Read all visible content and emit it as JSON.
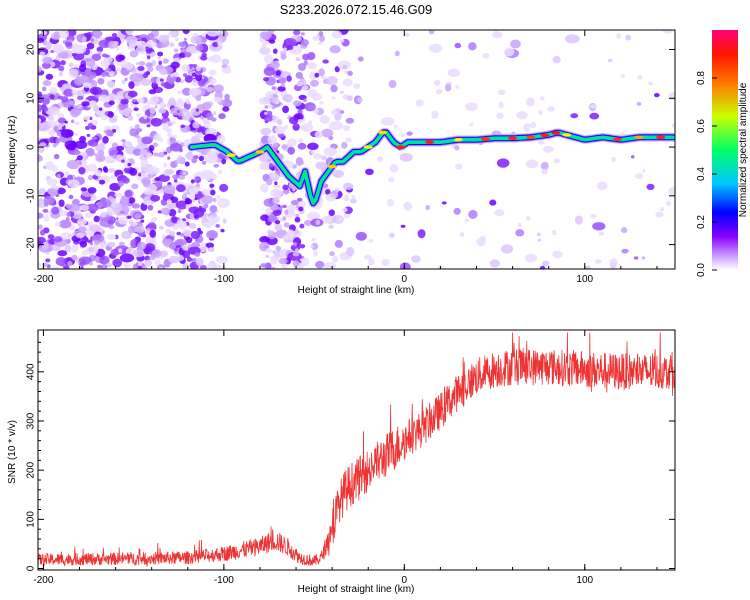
{
  "page_title": "S233.2026.072.15.46.G09",
  "chart_data": [
    {
      "type": "heatmap",
      "name": "spectrogram",
      "title": "S233.2026.072.15.46.G09",
      "xlabel": "Height of straight line (km)",
      "ylabel": "Frequency (Hz)",
      "xlim": [
        -203,
        150
      ],
      "ylim": [
        -25,
        24
      ],
      "x_ticks": [
        -200,
        -100,
        0,
        100
      ],
      "y_ticks": [
        -20,
        -10,
        0,
        10,
        20
      ],
      "colorbar": {
        "label": "Normalized spectral amplitude",
        "range": [
          0,
          1
        ],
        "ticks": [
          0.0,
          0.2,
          0.4,
          0.6,
          0.8
        ],
        "colormap": [
          "#ffffff",
          "#8800ff",
          "#0000ff",
          "#00d8ff",
          "#00ff44",
          "#e8ff00",
          "#ff2200",
          "#ff0066"
        ]
      },
      "ridge": {
        "x": [
          -118,
          -105,
          -98,
          -92,
          -86,
          -80,
          -76,
          -70,
          -64,
          -58,
          -55,
          -52,
          -50,
          -46,
          -42,
          -38,
          -34,
          -28,
          -24,
          -20,
          -16,
          -12,
          -10,
          -6,
          -2,
          2,
          6,
          10,
          14,
          20,
          30,
          40,
          50,
          60,
          70,
          80,
          85,
          90,
          95,
          100,
          110,
          120,
          130,
          140,
          150
        ],
        "y": [
          0,
          0.5,
          -1,
          -3,
          -2,
          -1,
          0,
          -3,
          -6,
          -8,
          -5,
          -10,
          -12,
          -7,
          -5,
          -3,
          -3,
          -1,
          -1,
          0,
          1,
          3,
          3,
          1,
          0,
          1,
          1,
          1,
          1,
          1,
          1.5,
          1.5,
          1.8,
          1.8,
          2,
          2.5,
          3,
          2.5,
          2,
          1.5,
          2,
          1.5,
          2,
          2,
          2
        ]
      }
    },
    {
      "type": "line",
      "name": "snr",
      "xlabel": "Height of straight line (km)",
      "ylabel": "SNR (10 * v/v)",
      "xlim": [
        -203,
        150
      ],
      "ylim": [
        -3,
        485
      ],
      "x_ticks": [
        -200,
        -100,
        0,
        100
      ],
      "y_ticks": [
        0,
        100,
        200,
        300,
        400
      ],
      "color": "#ee3333",
      "trend": {
        "x": [
          -203,
          -150,
          -120,
          -100,
          -80,
          -72,
          -65,
          -58,
          -50,
          -46,
          -42,
          -38,
          -34,
          -30,
          -26,
          -20,
          -10,
          0,
          10,
          20,
          30,
          40,
          50,
          60,
          80,
          100,
          120,
          140,
          150
        ],
        "y": [
          18,
          20,
          22,
          30,
          45,
          58,
          45,
          22,
          15,
          22,
          60,
          110,
          150,
          170,
          180,
          200,
          230,
          260,
          285,
          320,
          360,
          390,
          405,
          410,
          410,
          405,
          400,
          400,
          405
        ]
      }
    }
  ]
}
